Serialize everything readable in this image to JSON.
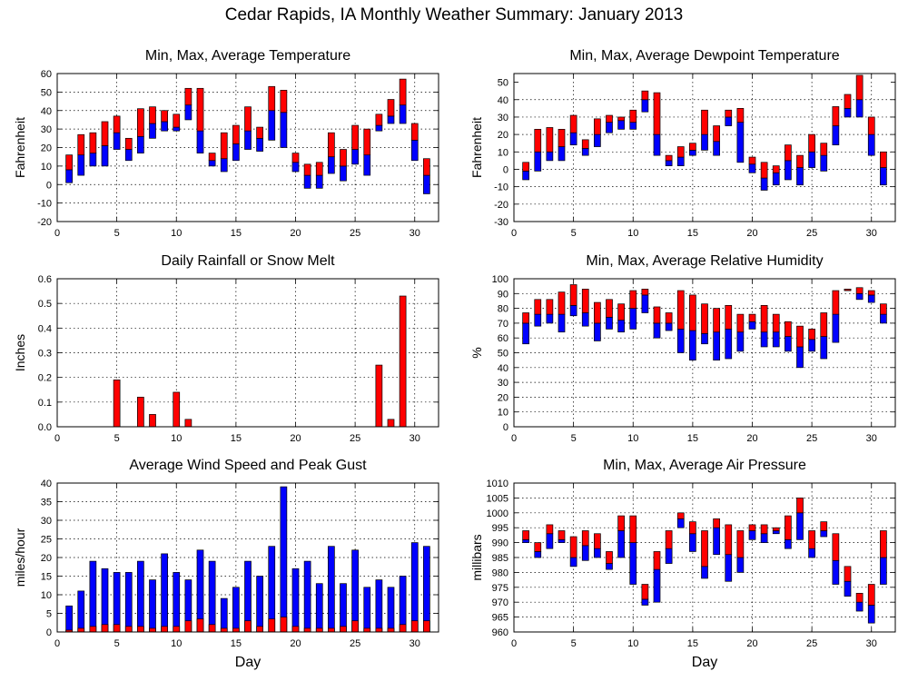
{
  "title": "Cedar Rapids, IA Monthly Weather Summary: January 2013",
  "colors": {
    "upper": "#ff0000",
    "lower": "#0000ff",
    "grid": "#000000"
  },
  "chart_data": [
    {
      "type": "bar",
      "title": "Min, Max, Average Temperature",
      "ylabel": "Fahrenheit",
      "xlabel": "",
      "xlim": [
        0,
        32
      ],
      "ylim": [
        -20,
        60
      ],
      "yticks": [
        -20,
        -10,
        0,
        10,
        20,
        30,
        40,
        50,
        60
      ],
      "xticks": [
        0,
        5,
        10,
        15,
        20,
        25,
        30
      ],
      "grid": true,
      "series": [
        {
          "name": "",
          "x": [
            1,
            2,
            3,
            4,
            5,
            6,
            7,
            8,
            9,
            10,
            11,
            12,
            13,
            14,
            15,
            16,
            17,
            18,
            19,
            20,
            21,
            22,
            23,
            24,
            25,
            26,
            27,
            28,
            29,
            30,
            31
          ],
          "min": [
            1,
            5,
            10,
            10,
            19,
            13,
            17,
            25,
            29,
            29,
            35,
            17,
            10,
            7,
            13,
            19,
            18,
            24,
            20,
            7,
            -2,
            -2,
            6,
            2,
            11,
            5,
            29,
            33,
            33,
            13,
            -5
          ],
          "avg": [
            8,
            16,
            17,
            21,
            28,
            19,
            26,
            33,
            34,
            31,
            43,
            29,
            13,
            14,
            22,
            29,
            25,
            40,
            39,
            12,
            5,
            5,
            15,
            10,
            19,
            16,
            32,
            37,
            43,
            24,
            5
          ],
          "max": [
            16,
            27,
            28,
            34,
            37,
            25,
            41,
            42,
            40,
            38,
            52,
            52,
            17,
            28,
            32,
            42,
            31,
            53,
            51,
            17,
            11,
            12,
            28,
            19,
            32,
            30,
            38,
            46,
            57,
            33,
            14
          ]
        }
      ]
    },
    {
      "type": "bar",
      "title": "Min, Max, Average Dewpoint Temperature",
      "ylabel": "Fahrenheit",
      "xlabel": "",
      "xlim": [
        0,
        32
      ],
      "ylim": [
        -30,
        55
      ],
      "yticks": [
        -30,
        -20,
        -10,
        0,
        10,
        20,
        30,
        40,
        50
      ],
      "xticks": [
        0,
        5,
        10,
        15,
        20,
        25,
        30
      ],
      "grid": true,
      "series": [
        {
          "name": "",
          "x": [
            1,
            2,
            3,
            4,
            5,
            6,
            7,
            8,
            9,
            10,
            11,
            12,
            13,
            14,
            15,
            16,
            17,
            18,
            19,
            20,
            21,
            22,
            23,
            24,
            25,
            26,
            27,
            28,
            29,
            30,
            31
          ],
          "min": [
            -6,
            -1,
            5,
            5,
            14,
            8,
            13,
            21,
            23,
            23,
            33,
            8,
            2,
            2,
            8,
            11,
            8,
            25,
            4,
            -2,
            -12,
            -9,
            -6,
            -9,
            1,
            -1,
            14,
            30,
            30,
            8,
            -9
          ],
          "avg": [
            -1,
            10,
            10,
            13,
            21,
            12,
            20,
            27,
            28,
            27,
            40,
            20,
            5,
            7,
            11,
            20,
            16,
            30,
            27,
            3,
            -5,
            -2,
            5,
            1,
            10,
            8,
            25,
            35,
            40,
            20,
            1
          ],
          "max": [
            4,
            23,
            24,
            23,
            31,
            17,
            29,
            31,
            30,
            34,
            45,
            44,
            8,
            13,
            15,
            34,
            25,
            34,
            35,
            7,
            4,
            2,
            14,
            8,
            20,
            15,
            36,
            43,
            54,
            30,
            10
          ]
        }
      ]
    },
    {
      "type": "bar",
      "title": "Daily Rainfall or Snow Melt",
      "ylabel": "Inches",
      "xlabel": "",
      "xlim": [
        0,
        32
      ],
      "ylim": [
        0,
        0.6
      ],
      "yticks": [
        0.0,
        0.1,
        0.2,
        0.3,
        0.4,
        0.5,
        0.6
      ],
      "ytick_labels": [
        "0.0",
        "0.1",
        "0.2",
        "0.3",
        "0.4",
        "0.5",
        "0.6"
      ],
      "xticks": [
        0,
        5,
        10,
        15,
        20,
        25,
        30
      ],
      "grid": true,
      "series": [
        {
          "name": "",
          "x": [
            5,
            7,
            8,
            10,
            11,
            27,
            28,
            29
          ],
          "values": [
            0.19,
            0.12,
            0.05,
            0.14,
            0.03,
            0.25,
            0.03,
            0.53
          ]
        }
      ]
    },
    {
      "type": "bar",
      "title": "Min, Max, Average Relative Humidity",
      "ylabel": "%",
      "xlabel": "",
      "xlim": [
        0,
        32
      ],
      "ylim": [
        0,
        100
      ],
      "yticks": [
        0,
        10,
        20,
        30,
        40,
        50,
        60,
        70,
        80,
        90,
        100
      ],
      "xticks": [
        0,
        5,
        10,
        15,
        20,
        25,
        30
      ],
      "grid": true,
      "series": [
        {
          "name": "",
          "x": [
            1,
            2,
            3,
            4,
            5,
            6,
            7,
            8,
            9,
            10,
            11,
            12,
            13,
            14,
            15,
            16,
            17,
            18,
            19,
            20,
            21,
            22,
            23,
            24,
            25,
            26,
            27,
            28,
            29,
            30,
            31
          ],
          "min": [
            56,
            68,
            70,
            64,
            75,
            68,
            58,
            66,
            64,
            66,
            77,
            60,
            65,
            50,
            45,
            56,
            45,
            46,
            51,
            66,
            54,
            54,
            51,
            40,
            51,
            46,
            57,
            92,
            86,
            84,
            70
          ],
          "avg": [
            70,
            76,
            76,
            76,
            82,
            77,
            70,
            74,
            72,
            80,
            89,
            70,
            70,
            66,
            65,
            63,
            64,
            66,
            64,
            71,
            64,
            64,
            61,
            54,
            59,
            61,
            76,
            93,
            90,
            89,
            76
          ],
          "max": [
            77,
            86,
            86,
            91,
            96,
            93,
            84,
            86,
            83,
            92,
            93,
            81,
            77,
            92,
            89,
            83,
            80,
            82,
            76,
            76,
            82,
            76,
            71,
            68,
            66,
            77,
            92,
            93,
            94,
            92,
            83
          ]
        }
      ]
    },
    {
      "type": "bar",
      "title": "Average Wind Speed and Peak Gust",
      "ylabel": "miles/hour",
      "xlabel": "Day",
      "xlim": [
        0,
        32
      ],
      "ylim": [
        0,
        40
      ],
      "yticks": [
        0,
        5,
        10,
        15,
        20,
        25,
        30,
        35,
        40
      ],
      "xticks": [
        0,
        5,
        10,
        15,
        20,
        25,
        30
      ],
      "grid": true,
      "series": [
        {
          "name": "",
          "x": [
            1,
            2,
            3,
            4,
            5,
            6,
            7,
            8,
            9,
            10,
            11,
            12,
            13,
            14,
            15,
            16,
            17,
            18,
            19,
            20,
            21,
            22,
            23,
            24,
            25,
            26,
            27,
            28,
            29,
            30,
            31
          ],
          "avg": [
            0.5,
            1,
            1.5,
            2,
            2,
            1.5,
            1.5,
            1,
            1.5,
            1.5,
            3,
            3.5,
            2,
            1,
            1,
            3,
            1.5,
            3.5,
            4,
            1.5,
            1,
            1,
            1,
            1.5,
            3,
            1,
            1,
            1,
            2,
            3,
            3
          ],
          "gust": [
            7,
            11,
            19,
            17,
            16,
            16,
            19,
            14,
            21,
            16,
            14,
            22,
            19,
            9,
            12,
            19,
            15,
            23,
            39,
            17,
            19,
            13,
            23,
            13,
            22,
            12,
            14,
            12,
            15,
            24,
            23
          ]
        }
      ]
    },
    {
      "type": "bar",
      "title": "Min, Max, Average Air Pressure",
      "ylabel": "millibars",
      "xlabel": "Day",
      "xlim": [
        0,
        32
      ],
      "ylim": [
        960,
        1010
      ],
      "yticks": [
        960,
        965,
        970,
        975,
        980,
        985,
        990,
        995,
        1000,
        1005,
        1010
      ],
      "xticks": [
        0,
        5,
        10,
        15,
        20,
        25,
        30
      ],
      "grid": true,
      "series": [
        {
          "name": "",
          "x": [
            1,
            2,
            3,
            4,
            5,
            6,
            7,
            8,
            9,
            10,
            11,
            12,
            13,
            14,
            15,
            16,
            17,
            18,
            19,
            20,
            21,
            22,
            23,
            24,
            25,
            26,
            27,
            28,
            29,
            30,
            31
          ],
          "min": [
            990,
            985,
            988,
            990,
            982,
            984,
            985,
            981,
            985,
            976,
            969,
            970,
            983,
            995,
            987,
            978,
            986,
            977,
            980,
            991,
            990,
            993,
            988,
            991,
            985,
            992,
            976,
            972,
            967,
            963,
            976
          ],
          "avg": [
            991,
            987,
            993,
            991,
            985,
            989,
            988,
            983,
            994,
            990,
            971,
            981,
            988,
            998,
            993,
            982,
            995,
            986,
            985,
            994,
            993,
            994,
            991,
            1000,
            988,
            994,
            984,
            977,
            970,
            969,
            985
          ],
          "max": [
            994,
            990,
            996,
            994,
            992,
            994,
            993,
            987,
            999,
            999,
            976,
            987,
            994,
            1000,
            997,
            994,
            998,
            996,
            994,
            996,
            996,
            995,
            999,
            1005,
            994,
            997,
            993,
            982,
            973,
            976,
            994
          ]
        }
      ]
    }
  ]
}
